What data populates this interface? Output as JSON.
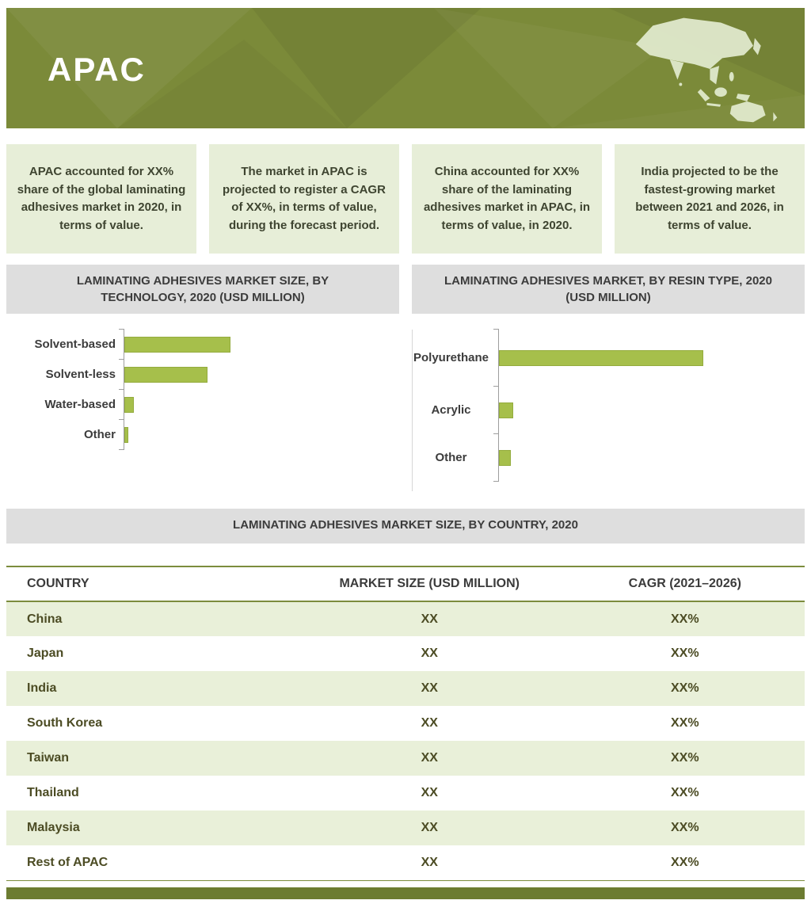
{
  "header": {
    "title": "APAC"
  },
  "highlights": [
    {
      "text": "APAC accounted for XX% share of the global laminating adhesives market in 2020, in terms of value."
    },
    {
      "text": "The market in APAC is projected to register a CAGR of XX%, in terms of value, during the forecast period."
    },
    {
      "text": "China accounted for XX% share of the laminating adhesives market in APAC, in terms of value, in 2020."
    },
    {
      "text": "India projected to be the fastest-growing market between 2021 and 2026, in terms of value."
    }
  ],
  "chart_data": [
    {
      "type": "bar",
      "orientation": "horizontal",
      "title": "LAMINATING ADHESIVES MARKET SIZE, BY TECHNOLOGY, 2020 (USD MILLION)",
      "categories": [
        "Solvent-based",
        "Solvent-less",
        "Water-based",
        "Other"
      ],
      "values": [
        100,
        78,
        9,
        4
      ],
      "units": "relative bar length, % of largest bar (numeric values shown only as XX placeholders in source)",
      "bar_color": "#a6bf4b",
      "legend": "none",
      "grid": "off"
    },
    {
      "type": "bar",
      "orientation": "horizontal",
      "title": "LAMINATING ADHESIVES MARKET, BY RESIN TYPE, 2020 (USD MILLION)",
      "categories": [
        "Polyurethane",
        "Acrylic",
        "Other"
      ],
      "values": [
        100,
        7,
        6
      ],
      "units": "relative bar length, % of largest bar (numeric values shown only as XX placeholders in source)",
      "bar_color": "#a6bf4b",
      "legend": "none",
      "grid": "off"
    },
    {
      "type": "table",
      "title": "LAMINATING ADHESIVES MARKET SIZE, BY COUNTRY, 2020",
      "columns": [
        "COUNTRY",
        "MARKET SIZE (USD MILLION)",
        "CAGR (2021–2026)"
      ],
      "rows": [
        {
          "country": "China",
          "market_size": "XX",
          "cagr": "XX%"
        },
        {
          "country": "Japan",
          "market_size": "XX",
          "cagr": "XX%"
        },
        {
          "country": "India",
          "market_size": "XX",
          "cagr": "XX%"
        },
        {
          "country": "South Korea",
          "market_size": "XX",
          "cagr": "XX%"
        },
        {
          "country": "Taiwan",
          "market_size": "XX",
          "cagr": "XX%"
        },
        {
          "country": "Thailand",
          "market_size": "XX",
          "cagr": "XX%"
        },
        {
          "country": "Malaysia",
          "market_size": "XX",
          "cagr": "XX%"
        },
        {
          "country": "Rest of APAC",
          "market_size": "XX",
          "cagr": "XX%"
        }
      ]
    }
  ],
  "colors": {
    "banner_green": "#7b8a39",
    "bar_green": "#a6bf4b",
    "highlight_bg": "#e7eed8",
    "section_header_bg": "#dedede",
    "table_alt_row_bg": "#e9f0d9",
    "table_text": "#4c4c24",
    "rule_green": "#7c8c3d",
    "footer_bar": "#6c7c31",
    "map_fill": "#e0e9cc"
  }
}
